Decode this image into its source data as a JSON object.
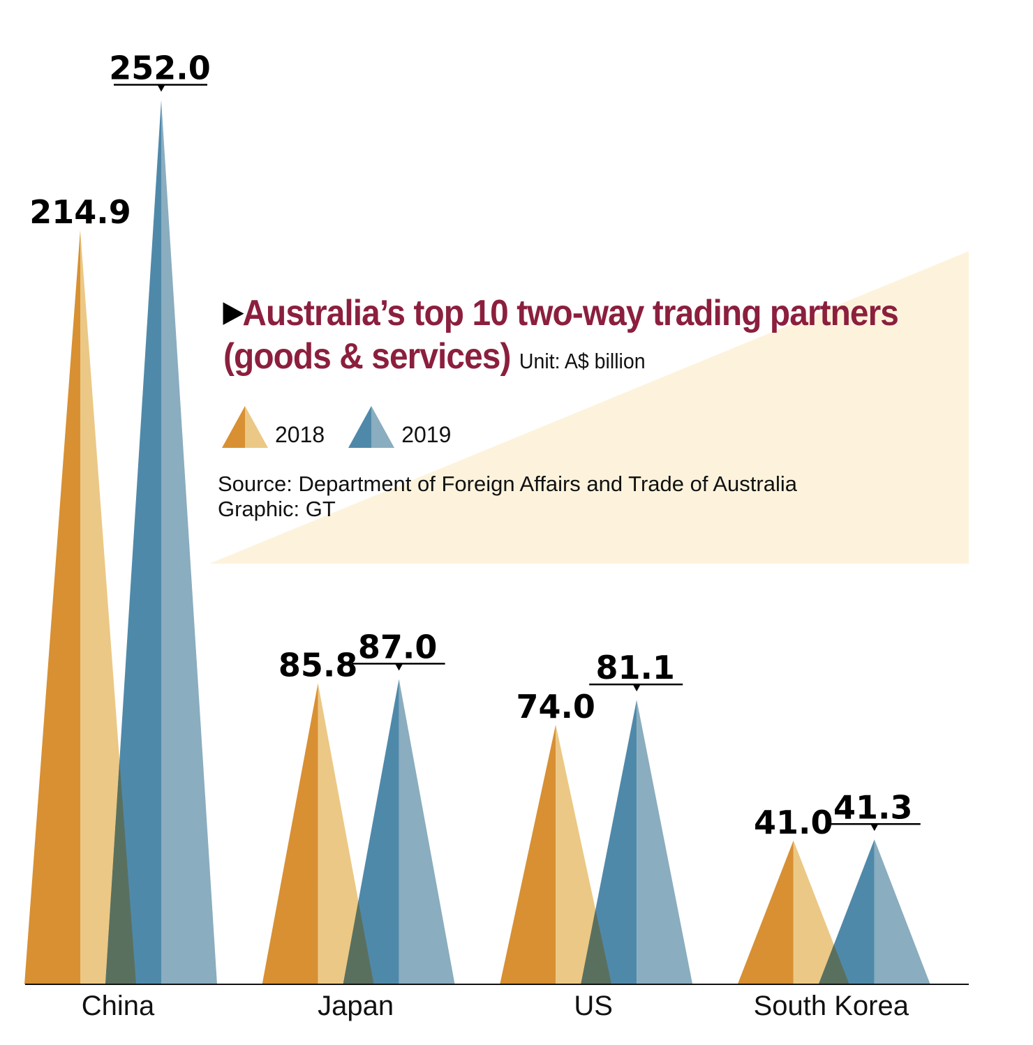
{
  "chart_data": {
    "type": "bar",
    "mark_shape": "triangle",
    "title": "Australia’s top 10 two-way trading partners (goods & services)",
    "unit": "Unit: A$ billion",
    "categories": [
      "China",
      "Japan",
      "US",
      "South Korea"
    ],
    "series": [
      {
        "name": "2018",
        "values": [
          214.9,
          85.8,
          74.0,
          41.0
        ],
        "labels": [
          "214.9",
          "85.8",
          "74.0",
          "41.0"
        ],
        "color_dark": "#d89033",
        "color_light": "#ebc885"
      },
      {
        "name": "2019",
        "values": [
          252.0,
          87.0,
          81.1,
          41.3
        ],
        "labels": [
          "252.0",
          "87.0",
          "81.1",
          "41.3"
        ],
        "color_dark": "#4f89aa",
        "color_light": "#8aadbf"
      }
    ],
    "overlap_color": "#5a705f",
    "ylim": [
      0,
      270
    ],
    "grid": false,
    "legend_position": "middle",
    "source": "Source: Department of Foreign Affairs and Trade of Australia",
    "credit": "Graphic: GT"
  }
}
